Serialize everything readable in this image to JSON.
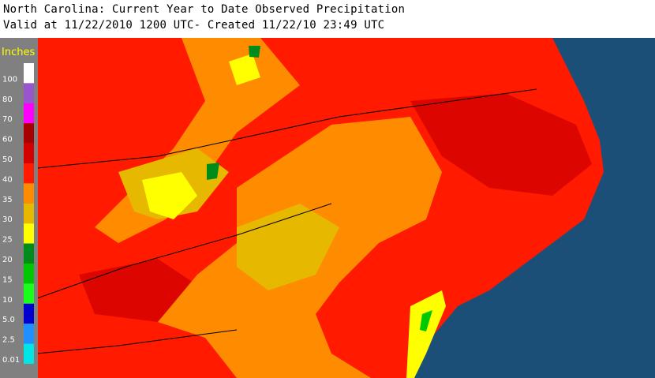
{
  "header": {
    "title": "North Carolina: Current Year to Date Observed Precipitation",
    "subtitle": "Valid at 11/22/2010 1200 UTC- Created 11/22/10 23:49 UTC"
  },
  "legend": {
    "unit": "Inches",
    "items": [
      {
        "label": "100",
        "color": "#ffffff"
      },
      {
        "label": "80",
        "color": "#9955cc"
      },
      {
        "label": "70",
        "color": "#ff00ff"
      },
      {
        "label": "60",
        "color": "#a80000"
      },
      {
        "label": "50",
        "color": "#d40000"
      },
      {
        "label": "40",
        "color": "#ff1a00"
      },
      {
        "label": "35",
        "color": "#ff8c00"
      },
      {
        "label": "30",
        "color": "#e6b800"
      },
      {
        "label": "25",
        "color": "#ffff00"
      },
      {
        "label": "20",
        "color": "#008c1a"
      },
      {
        "label": "15",
        "color": "#00c800"
      },
      {
        "label": "10",
        "color": "#19ff19"
      },
      {
        "label": "5.0",
        "color": "#0000d0"
      },
      {
        "label": "2.5",
        "color": "#1e90ff"
      },
      {
        "label": "0.01",
        "color": "#00e5e5"
      }
    ]
  }
}
